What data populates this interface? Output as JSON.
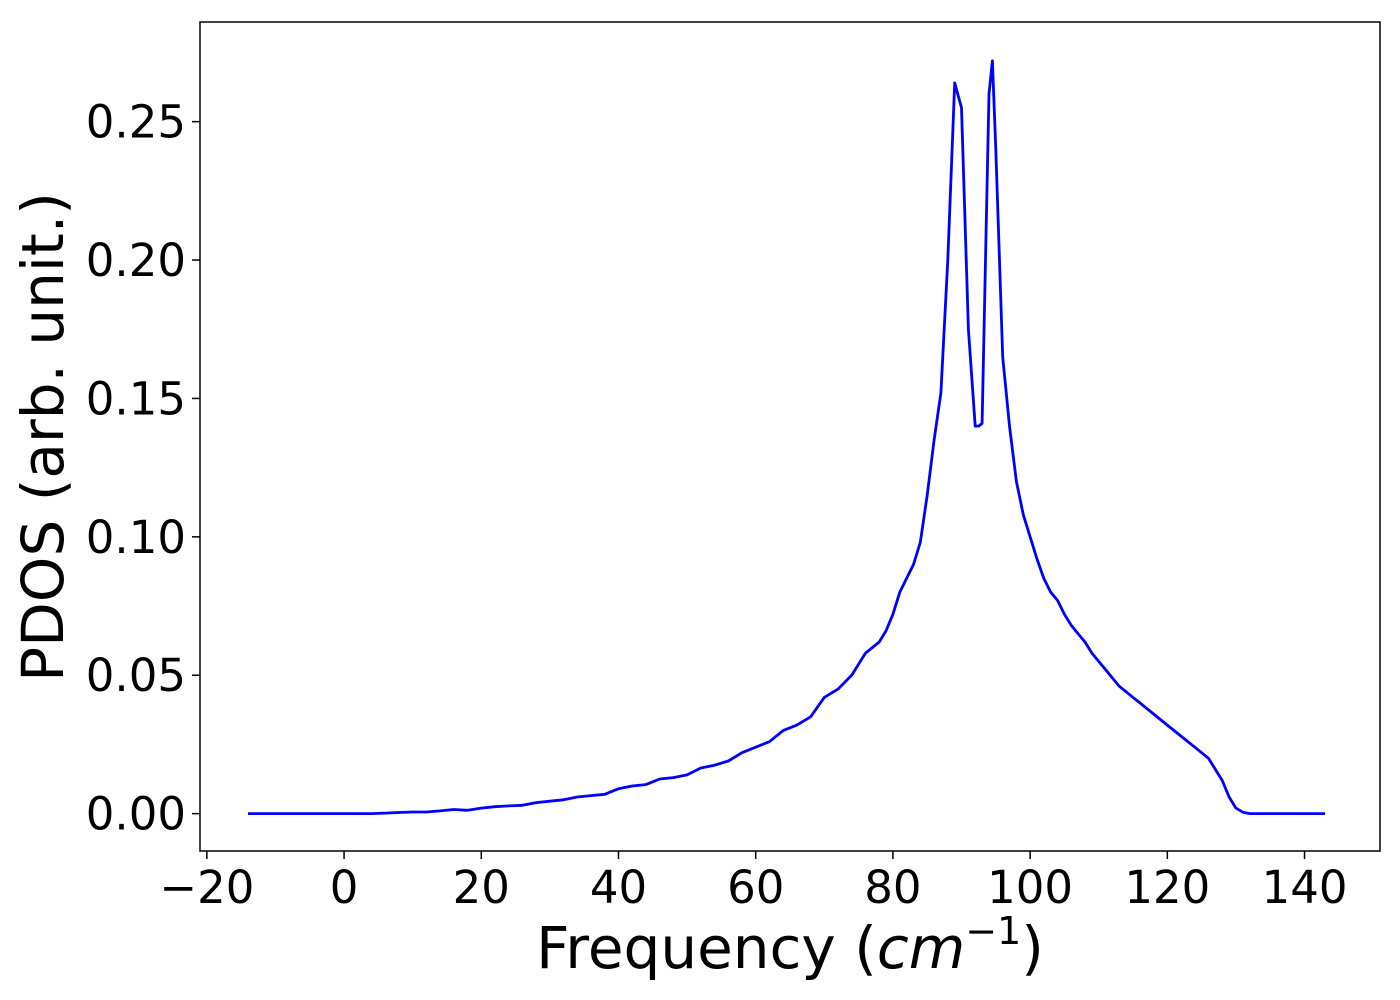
{
  "chart_data": {
    "type": "line",
    "title": "",
    "xlabel": "Frequency",
    "xlabel_unit": "(cm⁻¹)",
    "ylabel": "PDOS (arb. unit.)",
    "xlim": [
      -21,
      151
    ],
    "ylim": [
      -0.0135,
      0.286
    ],
    "xticks": [
      -20,
      0,
      20,
      40,
      60,
      80,
      100,
      120,
      140
    ],
    "xtick_labels": [
      "−20",
      "0",
      "20",
      "40",
      "60",
      "80",
      "100",
      "120",
      "140"
    ],
    "yticks": [
      0.0,
      0.05,
      0.1,
      0.15,
      0.2,
      0.25
    ],
    "ytick_labels": [
      "0.00",
      "0.05",
      "0.10",
      "0.15",
      "0.20",
      "0.25"
    ],
    "grid": false,
    "legend": "none",
    "series": [
      {
        "color": "#0000ff",
        "x": [
          -14,
          0,
          4,
          6,
          8,
          10,
          12,
          14,
          16,
          18,
          20,
          22,
          24,
          26,
          28,
          30,
          32,
          34,
          36,
          38,
          40,
          42,
          44,
          46,
          48,
          50,
          52,
          54,
          56,
          58,
          60,
          62,
          64,
          66,
          68,
          70,
          72,
          74,
          76,
          78,
          79,
          80,
          81,
          82,
          83,
          84,
          85,
          86,
          87,
          88,
          89,
          90,
          91,
          92,
          92.5,
          93,
          93.5,
          94,
          94.5,
          95,
          96,
          97,
          98,
          99,
          100,
          101,
          102,
          103,
          104,
          105,
          106,
          107,
          108,
          109,
          110,
          111,
          112,
          113,
          114,
          115,
          116,
          118,
          120,
          122,
          124,
          126,
          128,
          129,
          130,
          131,
          132,
          134,
          136,
          138,
          140,
          143
        ],
        "y": [
          0,
          0,
          0,
          0.0002,
          0.0004,
          0.0006,
          0.0006,
          0.001,
          0.0015,
          0.0012,
          0.002,
          0.0025,
          0.0028,
          0.003,
          0.004,
          0.0045,
          0.005,
          0.006,
          0.0065,
          0.007,
          0.009,
          0.01,
          0.0105,
          0.0125,
          0.013,
          0.014,
          0.0165,
          0.0175,
          0.019,
          0.022,
          0.024,
          0.026,
          0.03,
          0.032,
          0.035,
          0.042,
          0.045,
          0.05,
          0.058,
          0.062,
          0.066,
          0.072,
          0.08,
          0.085,
          0.09,
          0.098,
          0.115,
          0.135,
          0.152,
          0.2,
          0.264,
          0.255,
          0.175,
          0.14,
          0.14,
          0.141,
          0.2,
          0.26,
          0.272,
          0.24,
          0.165,
          0.14,
          0.12,
          0.108,
          0.1,
          0.092,
          0.085,
          0.08,
          0.077,
          0.072,
          0.068,
          0.065,
          0.062,
          0.058,
          0.055,
          0.052,
          0.049,
          0.046,
          0.044,
          0.042,
          0.04,
          0.036,
          0.032,
          0.028,
          0.024,
          0.02,
          0.012,
          0.006,
          0.002,
          0.0005,
          0,
          0,
          0,
          0,
          0,
          0
        ]
      }
    ]
  }
}
